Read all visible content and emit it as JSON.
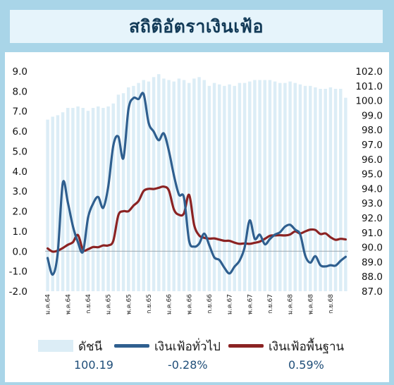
{
  "title": "สถิติอัตราเงินเฟ้อ",
  "legend": [
    {
      "label": "ดัชนี",
      "value": "100.19"
    },
    {
      "label": "เงินเฟ้อทั่วไป",
      "value": "-0.28%"
    },
    {
      "label": "เงินเฟ้อพื้นฐาน",
      "value": "0.59%"
    }
  ],
  "colors": {
    "background": "#a9d5e8",
    "index_bar": "#dcedf6",
    "headline": "#2f5f8f",
    "core": "#8b2323"
  },
  "chart_data": {
    "type": "bar+line",
    "left_axis": {
      "ylim": [
        -2.0,
        9.0
      ],
      "ticks": [
        "-2.0",
        "-1.0",
        "0.0",
        "1.0",
        "2.0",
        "3.0",
        "4.0",
        "5.0",
        "6.0",
        "7.0",
        "8.0",
        "9.0"
      ]
    },
    "right_axis": {
      "ylim": [
        87.0,
        102.0
      ],
      "ticks": [
        "87.0",
        "88.0",
        "89.0",
        "90.0",
        "91.0",
        "92.0",
        "93.0",
        "94.0",
        "95.0",
        "96.0",
        "97.0",
        "98.0",
        "99.0",
        "100.0",
        "101.0",
        "102.0"
      ]
    },
    "x_tick_labels": [
      {
        "index": 0,
        "label": "ม.ค.64"
      },
      {
        "index": 4,
        "label": "พ.ค.64"
      },
      {
        "index": 8,
        "label": "ก.ย.64"
      },
      {
        "index": 12,
        "label": "ม.ค.65"
      },
      {
        "index": 16,
        "label": "พ.ค.65"
      },
      {
        "index": 20,
        "label": "ก.ย.65"
      },
      {
        "index": 24,
        "label": "ม.ค.66"
      },
      {
        "index": 28,
        "label": "พ.ค.66"
      },
      {
        "index": 32,
        "label": "ก.ย.66"
      },
      {
        "index": 36,
        "label": "ม.ค.67"
      },
      {
        "index": 40,
        "label": "พ.ค.67"
      },
      {
        "index": 44,
        "label": "ก.ย.67"
      },
      {
        "index": 48,
        "label": "ม.ค.68"
      },
      {
        "index": 52,
        "label": "พ.ค.68"
      },
      {
        "index": 56,
        "label": "ก.ย.68"
      }
    ],
    "series": [
      {
        "name": "ดัชนี",
        "kind": "bar",
        "axis": "right",
        "values": [
          98.7,
          98.9,
          99.0,
          99.2,
          99.5,
          99.5,
          99.6,
          99.5,
          99.3,
          99.5,
          99.6,
          99.5,
          99.6,
          99.8,
          100.4,
          100.5,
          100.9,
          101.0,
          101.2,
          101.4,
          101.3,
          101.6,
          101.8,
          101.5,
          101.4,
          101.3,
          101.5,
          101.4,
          101.2,
          101.5,
          101.6,
          101.4,
          101.0,
          101.2,
          101.1,
          101.0,
          101.1,
          101.0,
          101.2,
          101.2,
          101.3,
          101.4,
          101.4,
          101.4,
          101.4,
          101.3,
          101.2,
          101.2,
          101.3,
          101.2,
          101.1,
          101.0,
          101.0,
          100.9,
          100.8,
          100.8,
          100.9,
          100.8,
          100.8,
          100.19
        ]
      },
      {
        "name": "เงินเฟ้อทั่วไป",
        "kind": "line",
        "axis": "left",
        "values": [
          -0.34,
          -1.17,
          -0.08,
          3.41,
          2.44,
          1.25,
          0.45,
          -0.02,
          1.68,
          2.38,
          2.71,
          2.17,
          3.23,
          5.28,
          5.73,
          4.65,
          7.1,
          7.66,
          7.61,
          7.86,
          6.41,
          5.98,
          5.55,
          5.89,
          5.02,
          3.79,
          2.83,
          2.67,
          0.53,
          0.23,
          0.38,
          0.88,
          0.3,
          -0.31,
          -0.44,
          -0.83,
          -1.11,
          -0.77,
          -0.47,
          0.19,
          1.54,
          0.62,
          0.83,
          0.35,
          0.61,
          0.83,
          0.95,
          1.23,
          1.32,
          1.08,
          0.84,
          -0.22,
          -0.57,
          -0.25,
          -0.7,
          -0.76,
          -0.7,
          -0.72,
          -0.48,
          -0.28
        ]
      },
      {
        "name": "เงินเฟ้อพื้นฐาน",
        "kind": "line",
        "axis": "left",
        "values": [
          0.14,
          -0.02,
          0.03,
          0.16,
          0.32,
          0.45,
          0.81,
          0.07,
          0.1,
          0.21,
          0.2,
          0.29,
          0.29,
          0.52,
          1.8,
          2.0,
          2.0,
          2.28,
          2.51,
          3.01,
          3.12,
          3.11,
          3.17,
          3.23,
          3.04,
          2.09,
          1.82,
          1.9,
          2.82,
          1.32,
          0.79,
          0.67,
          0.63,
          0.64,
          0.58,
          0.52,
          0.52,
          0.43,
          0.37,
          0.39,
          0.37,
          0.42,
          0.48,
          0.62,
          0.77,
          0.79,
          0.8,
          0.79,
          0.84,
          0.99,
          0.89,
          0.99,
          1.08,
          1.06,
          0.86,
          0.89,
          0.7,
          0.57,
          0.62,
          0.59
        ]
      }
    ]
  }
}
